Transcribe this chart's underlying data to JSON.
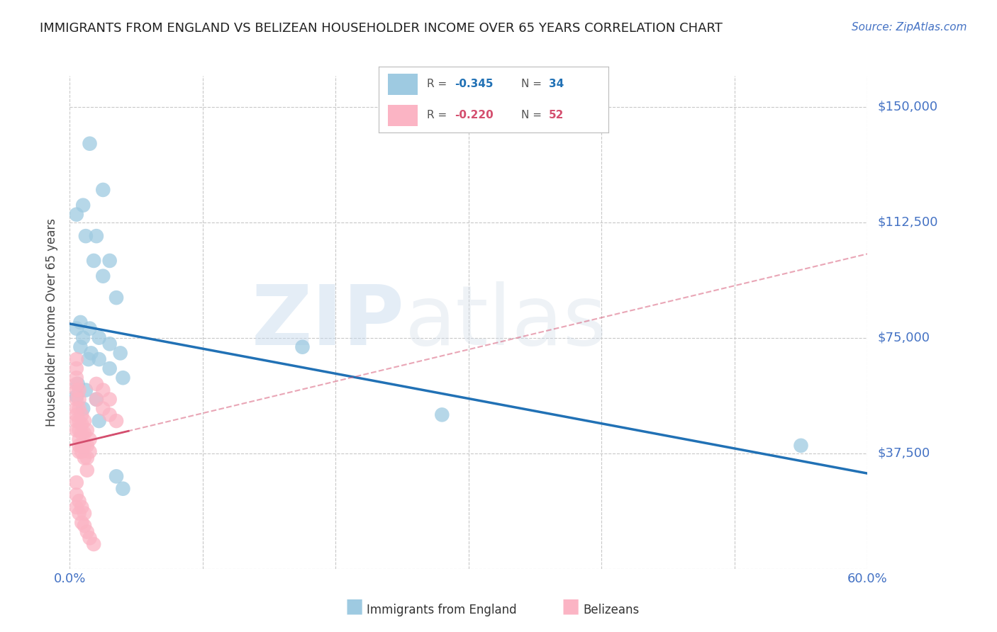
{
  "title": "IMMIGRANTS FROM ENGLAND VS BELIZEAN HOUSEHOLDER INCOME OVER 65 YEARS CORRELATION CHART",
  "source": "Source: ZipAtlas.com",
  "ylabel": "Householder Income Over 65 years",
  "xlim": [
    0.0,
    0.6
  ],
  "ylim": [
    0,
    160000
  ],
  "yticks": [
    0,
    37500,
    75000,
    112500,
    150000
  ],
  "ytick_labels": [
    "",
    "$37,500",
    "$75,000",
    "$112,500",
    "$150,000"
  ],
  "xtick_positions": [
    0.0,
    0.1,
    0.2,
    0.3,
    0.4,
    0.5,
    0.6
  ],
  "xtick_labels": [
    "0.0%",
    "",
    "",
    "",
    "",
    "",
    "60.0%"
  ],
  "watermark_left": "ZIP",
  "watermark_right": "atlas",
  "england_scatter_color": "#9ecae1",
  "england_line_color": "#2171b5",
  "belize_scatter_color": "#fbb4c4",
  "belize_line_color": "#d44e6e",
  "axis_label_color": "#4472c4",
  "grid_color": "#c8c8c8",
  "background_color": "#ffffff",
  "title_color": "#222222",
  "england_x": [
    0.015,
    0.025,
    0.01,
    0.02,
    0.03,
    0.005,
    0.012,
    0.018,
    0.025,
    0.035,
    0.008,
    0.015,
    0.022,
    0.03,
    0.038,
    0.175,
    0.005,
    0.01,
    0.016,
    0.022,
    0.03,
    0.04,
    0.28,
    0.55,
    0.008,
    0.014,
    0.006,
    0.012,
    0.005,
    0.01,
    0.02,
    0.022,
    0.035,
    0.04
  ],
  "england_y": [
    138000,
    123000,
    118000,
    108000,
    100000,
    115000,
    108000,
    100000,
    95000,
    88000,
    80000,
    78000,
    75000,
    73000,
    70000,
    72000,
    78000,
    75000,
    70000,
    68000,
    65000,
    62000,
    50000,
    40000,
    72000,
    68000,
    60000,
    58000,
    56000,
    52000,
    55000,
    48000,
    30000,
    26000
  ],
  "belize_x": [
    0.005,
    0.005,
    0.005,
    0.005,
    0.005,
    0.005,
    0.005,
    0.005,
    0.005,
    0.005,
    0.007,
    0.007,
    0.007,
    0.007,
    0.007,
    0.007,
    0.007,
    0.007,
    0.009,
    0.009,
    0.009,
    0.009,
    0.009,
    0.011,
    0.011,
    0.011,
    0.011,
    0.013,
    0.013,
    0.013,
    0.013,
    0.015,
    0.015,
    0.02,
    0.02,
    0.025,
    0.025,
    0.03,
    0.03,
    0.035,
    0.005,
    0.005,
    0.005,
    0.007,
    0.007,
    0.009,
    0.009,
    0.011,
    0.011,
    0.013,
    0.015,
    0.018
  ],
  "belize_y": [
    68000,
    65000,
    62000,
    60000,
    58000,
    55000,
    52000,
    50000,
    48000,
    45000,
    58000,
    55000,
    52000,
    48000,
    45000,
    42000,
    40000,
    38000,
    50000,
    47000,
    44000,
    40000,
    38000,
    48000,
    44000,
    40000,
    36000,
    45000,
    40000,
    36000,
    32000,
    42000,
    38000,
    60000,
    55000,
    58000,
    52000,
    55000,
    50000,
    48000,
    28000,
    24000,
    20000,
    22000,
    18000,
    20000,
    15000,
    18000,
    14000,
    12000,
    10000,
    8000
  ]
}
